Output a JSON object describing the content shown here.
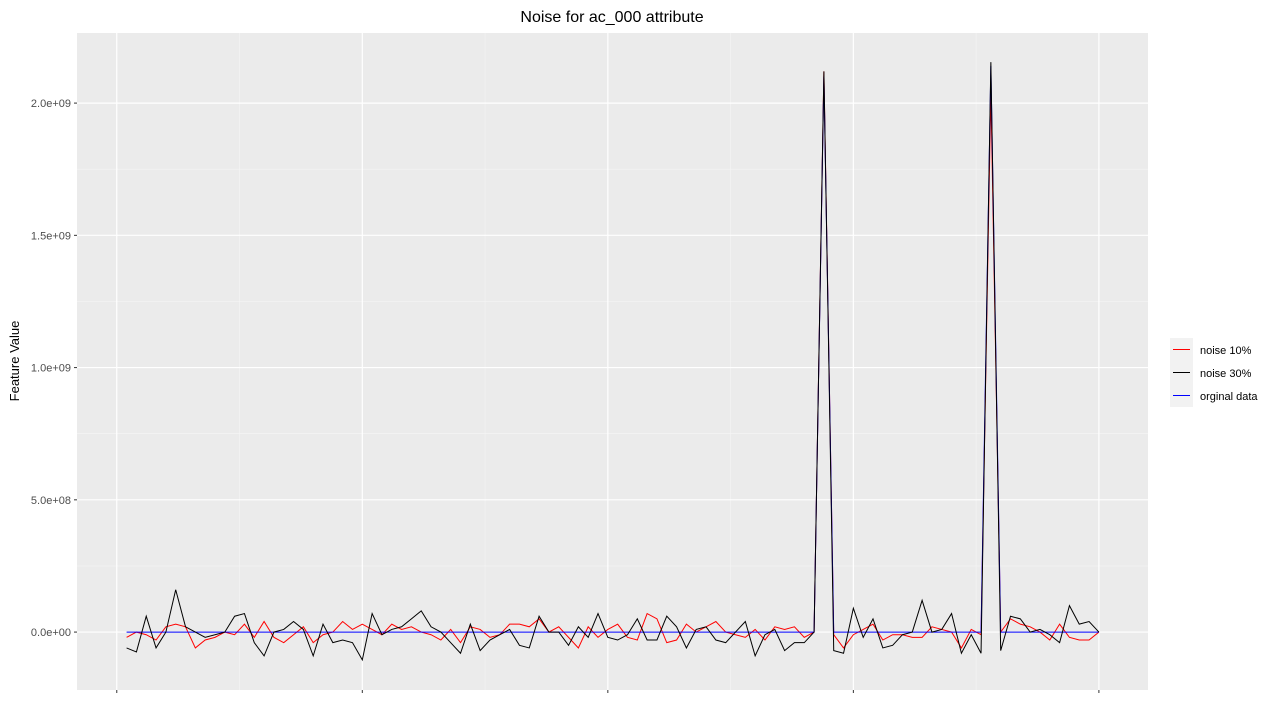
{
  "chart_data": {
    "type": "line",
    "title": "Noise for ac_000 attribute",
    "y_label": "Feature Value",
    "x": [
      1,
      2,
      3,
      4,
      5,
      6,
      7,
      8,
      9,
      10,
      11,
      12,
      13,
      14,
      15,
      16,
      17,
      18,
      19,
      20,
      21,
      22,
      23,
      24,
      25,
      26,
      27,
      28,
      29,
      30,
      31,
      32,
      33,
      34,
      35,
      36,
      37,
      38,
      39,
      40,
      41,
      42,
      43,
      44,
      45,
      46,
      47,
      48,
      49,
      50,
      51,
      52,
      53,
      54,
      55,
      56,
      57,
      58,
      59,
      60,
      61,
      62,
      63,
      64,
      65,
      66,
      67,
      68,
      69,
      70,
      71,
      72,
      73,
      74,
      75,
      76,
      77,
      78,
      79,
      80,
      81,
      82,
      83,
      84,
      85,
      86,
      87,
      88,
      89,
      90,
      91,
      92,
      93,
      94,
      95,
      96,
      97,
      98,
      99,
      100
    ],
    "series": [
      {
        "name": "noise 10%",
        "color": "#ff0000",
        "values": [
          -20000000.0,
          0,
          -10000000.0,
          -30000000.0,
          20000000.0,
          30000000.0,
          20000000.0,
          -60000000.0,
          -30000000.0,
          -20000000.0,
          0,
          -10000000.0,
          30000000.0,
          -20000000.0,
          40000000.0,
          -20000000.0,
          -40000000.0,
          -10000000.0,
          20000000.0,
          -40000000.0,
          -10000000.0,
          0,
          40000000.0,
          10000000.0,
          30000000.0,
          10000000.0,
          -10000000.0,
          30000000.0,
          10000000.0,
          20000000.0,
          0,
          -10000000.0,
          -30000000.0,
          10000000.0,
          -40000000.0,
          20000000.0,
          10000000.0,
          -20000000.0,
          -10000000.0,
          30000000.0,
          30000000.0,
          20000000.0,
          50000000.0,
          0,
          20000000.0,
          -20000000.0,
          -60000000.0,
          20000000.0,
          -20000000.0,
          10000000.0,
          30000000.0,
          -20000000.0,
          -30000000.0,
          70000000.0,
          50000000.0,
          -40000000.0,
          -30000000.0,
          30000000.0,
          0,
          20000000.0,
          40000000.0,
          0,
          -10000000.0,
          -20000000.0,
          10000000.0,
          -30000000.0,
          20000000.0,
          10000000.0,
          20000000.0,
          -20000000.0,
          0,
          2120000000.0,
          -10000000.0,
          -60000000.0,
          -10000000.0,
          10000000.0,
          30000000.0,
          -30000000.0,
          -10000000.0,
          -10000000.0,
          -20000000.0,
          -20000000.0,
          20000000.0,
          10000000.0,
          0,
          -60000000.0,
          10000000.0,
          -10000000.0,
          2040000000.0,
          0,
          50000000.0,
          30000000.0,
          20000000.0,
          0,
          -30000000.0,
          30000000.0,
          -20000000.0,
          -30000000.0,
          -30000000.0,
          0
        ]
      },
      {
        "name": "noise 30%",
        "color": "#000000",
        "values": [
          -60000000.0,
          -75000000.0,
          60000000.0,
          -60000000.0,
          0,
          160000000.0,
          20000000.0,
          0,
          -20000000.0,
          -10000000.0,
          0,
          60000000.0,
          70000000.0,
          -40000000.0,
          -90000000.0,
          0,
          10000000.0,
          40000000.0,
          10000000.0,
          -90000000.0,
          30000000.0,
          -40000000.0,
          -30000000.0,
          -40000000.0,
          -105000000.0,
          70000000.0,
          -10000000.0,
          10000000.0,
          20000000.0,
          50000000.0,
          80000000.0,
          20000000.0,
          0,
          -40000000.0,
          -80000000.0,
          30000000.0,
          -70000000.0,
          -30000000.0,
          -10000000.0,
          10000000.0,
          -50000000.0,
          -60000000.0,
          60000000.0,
          0,
          0,
          -50000000.0,
          20000000.0,
          -20000000.0,
          70000000.0,
          -20000000.0,
          -30000000.0,
          -10000000.0,
          50000000.0,
          -30000000.0,
          -30000000.0,
          60000000.0,
          20000000.0,
          -60000000.0,
          10000000.0,
          20000000.0,
          -30000000.0,
          -40000000.0,
          0,
          40000000.0,
          -90000000.0,
          -10000000.0,
          10000000.0,
          -70000000.0,
          -40000000.0,
          -40000000.0,
          0,
          2120000000.0,
          -70000000.0,
          -80000000.0,
          90000000.0,
          -20000000.0,
          50000000.0,
          -60000000.0,
          -50000000.0,
          -10000000.0,
          0,
          120000000.0,
          0,
          10000000.0,
          70000000.0,
          -80000000.0,
          -10000000.0,
          -80000000.0,
          2155000000.0,
          -70000000.0,
          60000000.0,
          50000000.0,
          0,
          10000000.0,
          -10000000.0,
          -40000000.0,
          100000000.0,
          30000000.0,
          40000000.0,
          0
        ]
      },
      {
        "name": "orginal data",
        "color": "#0000ff",
        "values": [
          0,
          0,
          0,
          0,
          0,
          0,
          0,
          0,
          0,
          0,
          0,
          0,
          0,
          0,
          0,
          0,
          0,
          0,
          0,
          0,
          0,
          0,
          0,
          0,
          0,
          0,
          0,
          0,
          0,
          0,
          0,
          0,
          0,
          0,
          0,
          0,
          0,
          0,
          0,
          0,
          0,
          0,
          0,
          0,
          0,
          0,
          0,
          0,
          0,
          0,
          0,
          0,
          0,
          0,
          0,
          0,
          0,
          0,
          0,
          0,
          0,
          0,
          0,
          0,
          0,
          0,
          0,
          0,
          0,
          0,
          0,
          2100000000.0,
          0,
          0,
          0,
          0,
          0,
          0,
          0,
          0,
          0,
          0,
          0,
          0,
          0,
          0,
          0,
          0,
          2140000000.0,
          0,
          0,
          0,
          0,
          0,
          0,
          0,
          0,
          0,
          0,
          0
        ]
      }
    ],
    "xlim": [
      -4.05,
      105
    ],
    "xticks": [
      0,
      25,
      50,
      75,
      100
    ],
    "ylim": [
      -219000000.0,
      2265000000.0
    ],
    "yticks": [
      {
        "value": 0,
        "label": "0.0e+00"
      },
      {
        "value": 500000000.0,
        "label": "5.0e+08"
      },
      {
        "value": 1000000000.0,
        "label": "1.0e+09"
      },
      {
        "value": 1500000000.0,
        "label": "1.5e+09"
      },
      {
        "value": 2000000000.0,
        "label": "2.0e+09"
      }
    ],
    "grid": true,
    "legend": "right"
  }
}
